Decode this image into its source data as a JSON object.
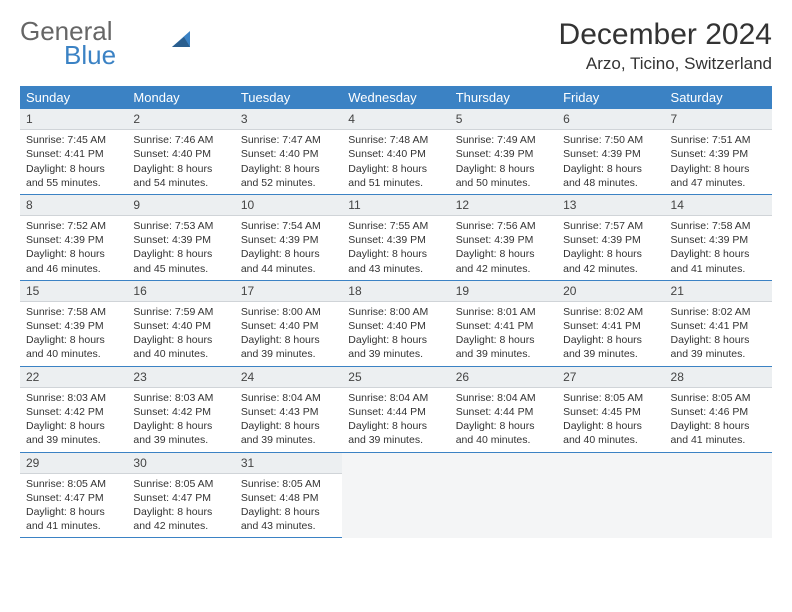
{
  "logo": {
    "text1": "General",
    "text2": "Blue",
    "accent": "#3b82c4"
  },
  "title": "December 2024",
  "location": "Arzo, Ticino, Switzerland",
  "colors": {
    "header_bg": "#3b82c4",
    "header_text": "#ffffff",
    "daynum_bg": "#eceff1",
    "row_divider": "#3b82c4",
    "empty_bg": "#f4f5f6",
    "text": "#333333"
  },
  "typography": {
    "title_fontsize": 30,
    "location_fontsize": 17,
    "dayheader_fontsize": 13,
    "cell_fontsize": 10.5
  },
  "day_headers": [
    "Sunday",
    "Monday",
    "Tuesday",
    "Wednesday",
    "Thursday",
    "Friday",
    "Saturday"
  ],
  "days": [
    {
      "n": 1,
      "sunrise": "7:45 AM",
      "sunset": "4:41 PM",
      "daylight": "8 hours and 55 minutes."
    },
    {
      "n": 2,
      "sunrise": "7:46 AM",
      "sunset": "4:40 PM",
      "daylight": "8 hours and 54 minutes."
    },
    {
      "n": 3,
      "sunrise": "7:47 AM",
      "sunset": "4:40 PM",
      "daylight": "8 hours and 52 minutes."
    },
    {
      "n": 4,
      "sunrise": "7:48 AM",
      "sunset": "4:40 PM",
      "daylight": "8 hours and 51 minutes."
    },
    {
      "n": 5,
      "sunrise": "7:49 AM",
      "sunset": "4:39 PM",
      "daylight": "8 hours and 50 minutes."
    },
    {
      "n": 6,
      "sunrise": "7:50 AM",
      "sunset": "4:39 PM",
      "daylight": "8 hours and 48 minutes."
    },
    {
      "n": 7,
      "sunrise": "7:51 AM",
      "sunset": "4:39 PM",
      "daylight": "8 hours and 47 minutes."
    },
    {
      "n": 8,
      "sunrise": "7:52 AM",
      "sunset": "4:39 PM",
      "daylight": "8 hours and 46 minutes."
    },
    {
      "n": 9,
      "sunrise": "7:53 AM",
      "sunset": "4:39 PM",
      "daylight": "8 hours and 45 minutes."
    },
    {
      "n": 10,
      "sunrise": "7:54 AM",
      "sunset": "4:39 PM",
      "daylight": "8 hours and 44 minutes."
    },
    {
      "n": 11,
      "sunrise": "7:55 AM",
      "sunset": "4:39 PM",
      "daylight": "8 hours and 43 minutes."
    },
    {
      "n": 12,
      "sunrise": "7:56 AM",
      "sunset": "4:39 PM",
      "daylight": "8 hours and 42 minutes."
    },
    {
      "n": 13,
      "sunrise": "7:57 AM",
      "sunset": "4:39 PM",
      "daylight": "8 hours and 42 minutes."
    },
    {
      "n": 14,
      "sunrise": "7:58 AM",
      "sunset": "4:39 PM",
      "daylight": "8 hours and 41 minutes."
    },
    {
      "n": 15,
      "sunrise": "7:58 AM",
      "sunset": "4:39 PM",
      "daylight": "8 hours and 40 minutes."
    },
    {
      "n": 16,
      "sunrise": "7:59 AM",
      "sunset": "4:40 PM",
      "daylight": "8 hours and 40 minutes."
    },
    {
      "n": 17,
      "sunrise": "8:00 AM",
      "sunset": "4:40 PM",
      "daylight": "8 hours and 39 minutes."
    },
    {
      "n": 18,
      "sunrise": "8:00 AM",
      "sunset": "4:40 PM",
      "daylight": "8 hours and 39 minutes."
    },
    {
      "n": 19,
      "sunrise": "8:01 AM",
      "sunset": "4:41 PM",
      "daylight": "8 hours and 39 minutes."
    },
    {
      "n": 20,
      "sunrise": "8:02 AM",
      "sunset": "4:41 PM",
      "daylight": "8 hours and 39 minutes."
    },
    {
      "n": 21,
      "sunrise": "8:02 AM",
      "sunset": "4:41 PM",
      "daylight": "8 hours and 39 minutes."
    },
    {
      "n": 22,
      "sunrise": "8:03 AM",
      "sunset": "4:42 PM",
      "daylight": "8 hours and 39 minutes."
    },
    {
      "n": 23,
      "sunrise": "8:03 AM",
      "sunset": "4:42 PM",
      "daylight": "8 hours and 39 minutes."
    },
    {
      "n": 24,
      "sunrise": "8:04 AM",
      "sunset": "4:43 PM",
      "daylight": "8 hours and 39 minutes."
    },
    {
      "n": 25,
      "sunrise": "8:04 AM",
      "sunset": "4:44 PM",
      "daylight": "8 hours and 39 minutes."
    },
    {
      "n": 26,
      "sunrise": "8:04 AM",
      "sunset": "4:44 PM",
      "daylight": "8 hours and 40 minutes."
    },
    {
      "n": 27,
      "sunrise": "8:05 AM",
      "sunset": "4:45 PM",
      "daylight": "8 hours and 40 minutes."
    },
    {
      "n": 28,
      "sunrise": "8:05 AM",
      "sunset": "4:46 PM",
      "daylight": "8 hours and 41 minutes."
    },
    {
      "n": 29,
      "sunrise": "8:05 AM",
      "sunset": "4:47 PM",
      "daylight": "8 hours and 41 minutes."
    },
    {
      "n": 30,
      "sunrise": "8:05 AM",
      "sunset": "4:47 PM",
      "daylight": "8 hours and 42 minutes."
    },
    {
      "n": 31,
      "sunrise": "8:05 AM",
      "sunset": "4:48 PM",
      "daylight": "8 hours and 43 minutes."
    }
  ],
  "labels": {
    "sunrise": "Sunrise:",
    "sunset": "Sunset:",
    "daylight": "Daylight:"
  }
}
